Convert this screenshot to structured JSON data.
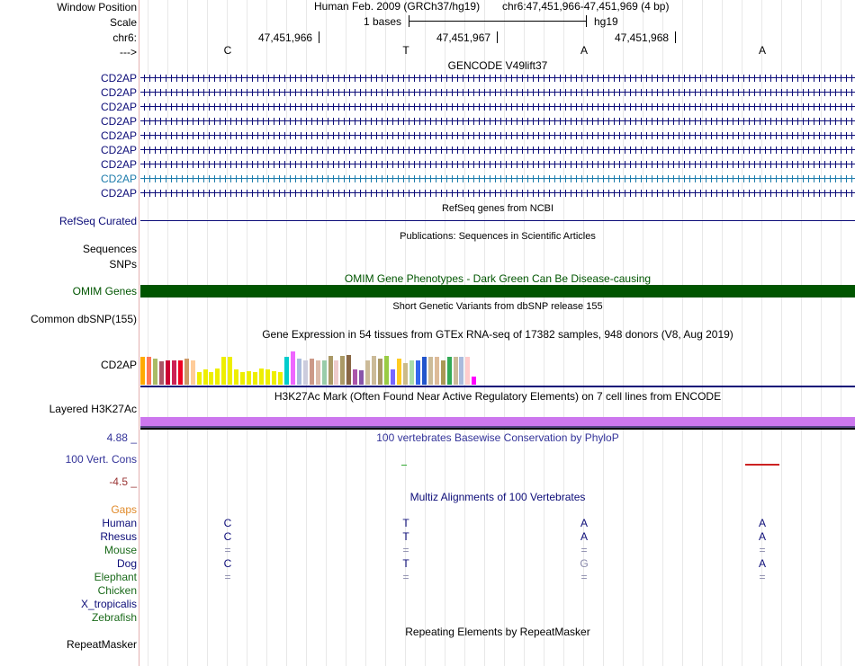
{
  "header": {
    "window_position_label": "Window Position",
    "scale_label": "Scale",
    "chrom_label": "chr6:",
    "strand_label": "--->",
    "assembly": "Human Feb. 2009 (GRCh37/hg19)",
    "position": "chr6:47,451,966-47,451,969 (4 bp)",
    "scale_text": "1 bases",
    "scale_db": "hg19",
    "ticks": [
      "47,451,966",
      "47,451,967",
      "47,451,968"
    ],
    "bases": [
      "C",
      "T",
      "A",
      "A"
    ]
  },
  "gencode": {
    "title": "GENCODE V49lift37",
    "genes": [
      "CD2AP",
      "CD2AP",
      "CD2AP",
      "CD2AP",
      "CD2AP",
      "CD2AP",
      "CD2AP",
      "CD2AP",
      "CD2AP"
    ],
    "colors": [
      "#0c0c78",
      "#0c0c78",
      "#0c0c78",
      "#0c0c78",
      "#0c0c78",
      "#0c0c78",
      "#0c0c78",
      "#1c7bab",
      "#0c0c78"
    ]
  },
  "refseq": {
    "label": "RefSeq Curated",
    "title": "RefSeq genes from NCBI"
  },
  "publications": {
    "title": "Publications: Sequences in Scientific Articles",
    "label_sequences": "Sequences",
    "label_snps": "SNPs"
  },
  "omim": {
    "title": "OMIM Gene Phenotypes - Dark Green Can Be Disease-causing",
    "label": "OMIM Genes",
    "color": "#005500"
  },
  "dbsnp": {
    "title": "Short Genetic Variants from dbSNP release 155",
    "label": "Common dbSNP(155)"
  },
  "gtex": {
    "title": "Gene Expression in 54 tissues from GTEx RNA-seq of 17382 samples, 948 donors (V8, Aug 2019)",
    "label": "CD2AP",
    "values": [
      0.9,
      0.92,
      0.84,
      0.75,
      0.8,
      0.8,
      0.8,
      0.84,
      0.8,
      0.4,
      0.5,
      0.4,
      0.52,
      0.9,
      0.9,
      0.5,
      0.4,
      0.45,
      0.4,
      0.52,
      0.5,
      0.45,
      0.4,
      0.9,
      1.1,
      0.84,
      0.78,
      0.84,
      0.78,
      0.78,
      0.95,
      0.78,
      0.95,
      0.98,
      0.5,
      0.48,
      0.78,
      0.95,
      0.86,
      0.95,
      0.5,
      0.86,
      0.7,
      0.78,
      0.8,
      0.9,
      0.9,
      0.9,
      0.78,
      0.9,
      0.9,
      0.9,
      0.9,
      0.26
    ],
    "colors": [
      "#ffaa00",
      "#ff7755",
      "#aabb66",
      "#aa5566",
      "#cc0033",
      "#cc2255",
      "#ee0022",
      "#cc9966",
      "#ffcc99",
      "#eeee00",
      "#eeee00",
      "#eeee00",
      "#eeee00",
      "#eeee00",
      "#eeee00",
      "#eeee00",
      "#eeee00",
      "#eeee00",
      "#eeee00",
      "#eeee00",
      "#eeee00",
      "#eeee00",
      "#eeee00",
      "#00cccc",
      "#ee66ff",
      "#aabbdd",
      "#ccccdd",
      "#cc9988",
      "#ddbbaa",
      "#99ccaa",
      "#aa9966",
      "#eecccc",
      "#aa9966",
      "#886644",
      "#aa55aa",
      "#8855aa",
      "#ccbb99",
      "#ccbb99",
      "#aa9966",
      "#99cc44",
      "#7766ff",
      "#ffcc22",
      "#ccbb88",
      "#aaddaa",
      "#3366ee",
      "#2255cc",
      "#ccbb99",
      "#ddbb99",
      "#aa9955",
      "#33aa55",
      "#ccbb99",
      "#aabbdd",
      "#ffcccc",
      "#ff00ff"
    ]
  },
  "h3k27ac": {
    "title": "H3K27Ac Mark (Often Found Near Active Regulatory Elements) on 7 cell lines from ENCODE",
    "label": "Layered H3K27Ac"
  },
  "conservation": {
    "title": "100 vertebrates Basewise Conservation by PhyloP",
    "label": "100 Vert. Cons",
    "ymax": "4.88 _",
    "ymin": "-4.5 _"
  },
  "multiz": {
    "title": "Multiz Alignments of 100 Vertebrates",
    "gaps_label": "Gaps",
    "species": [
      {
        "name": "Human",
        "bases": [
          "C",
          "T",
          "A",
          "A"
        ]
      },
      {
        "name": "Rhesus",
        "bases": [
          "C",
          "T",
          "A",
          "A"
        ]
      },
      {
        "name": "Mouse",
        "bases": [
          "=",
          "=",
          "=",
          "="
        ]
      },
      {
        "name": "Dog",
        "bases": [
          "C",
          "T",
          "G",
          "A"
        ]
      },
      {
        "name": "Elephant",
        "bases": [
          "=",
          "=",
          "=",
          "="
        ]
      },
      {
        "name": "Chicken",
        "bases": [
          "",
          "",
          "",
          ""
        ]
      },
      {
        "name": "X_tropicalis",
        "bases": [
          "",
          "",
          "",
          ""
        ]
      },
      {
        "name": "Zebrafish",
        "bases": [
          "",
          "",
          "",
          ""
        ]
      }
    ]
  },
  "repeatmasker": {
    "title": "Repeating Elements by RepeatMasker",
    "label": "RepeatMasker"
  }
}
